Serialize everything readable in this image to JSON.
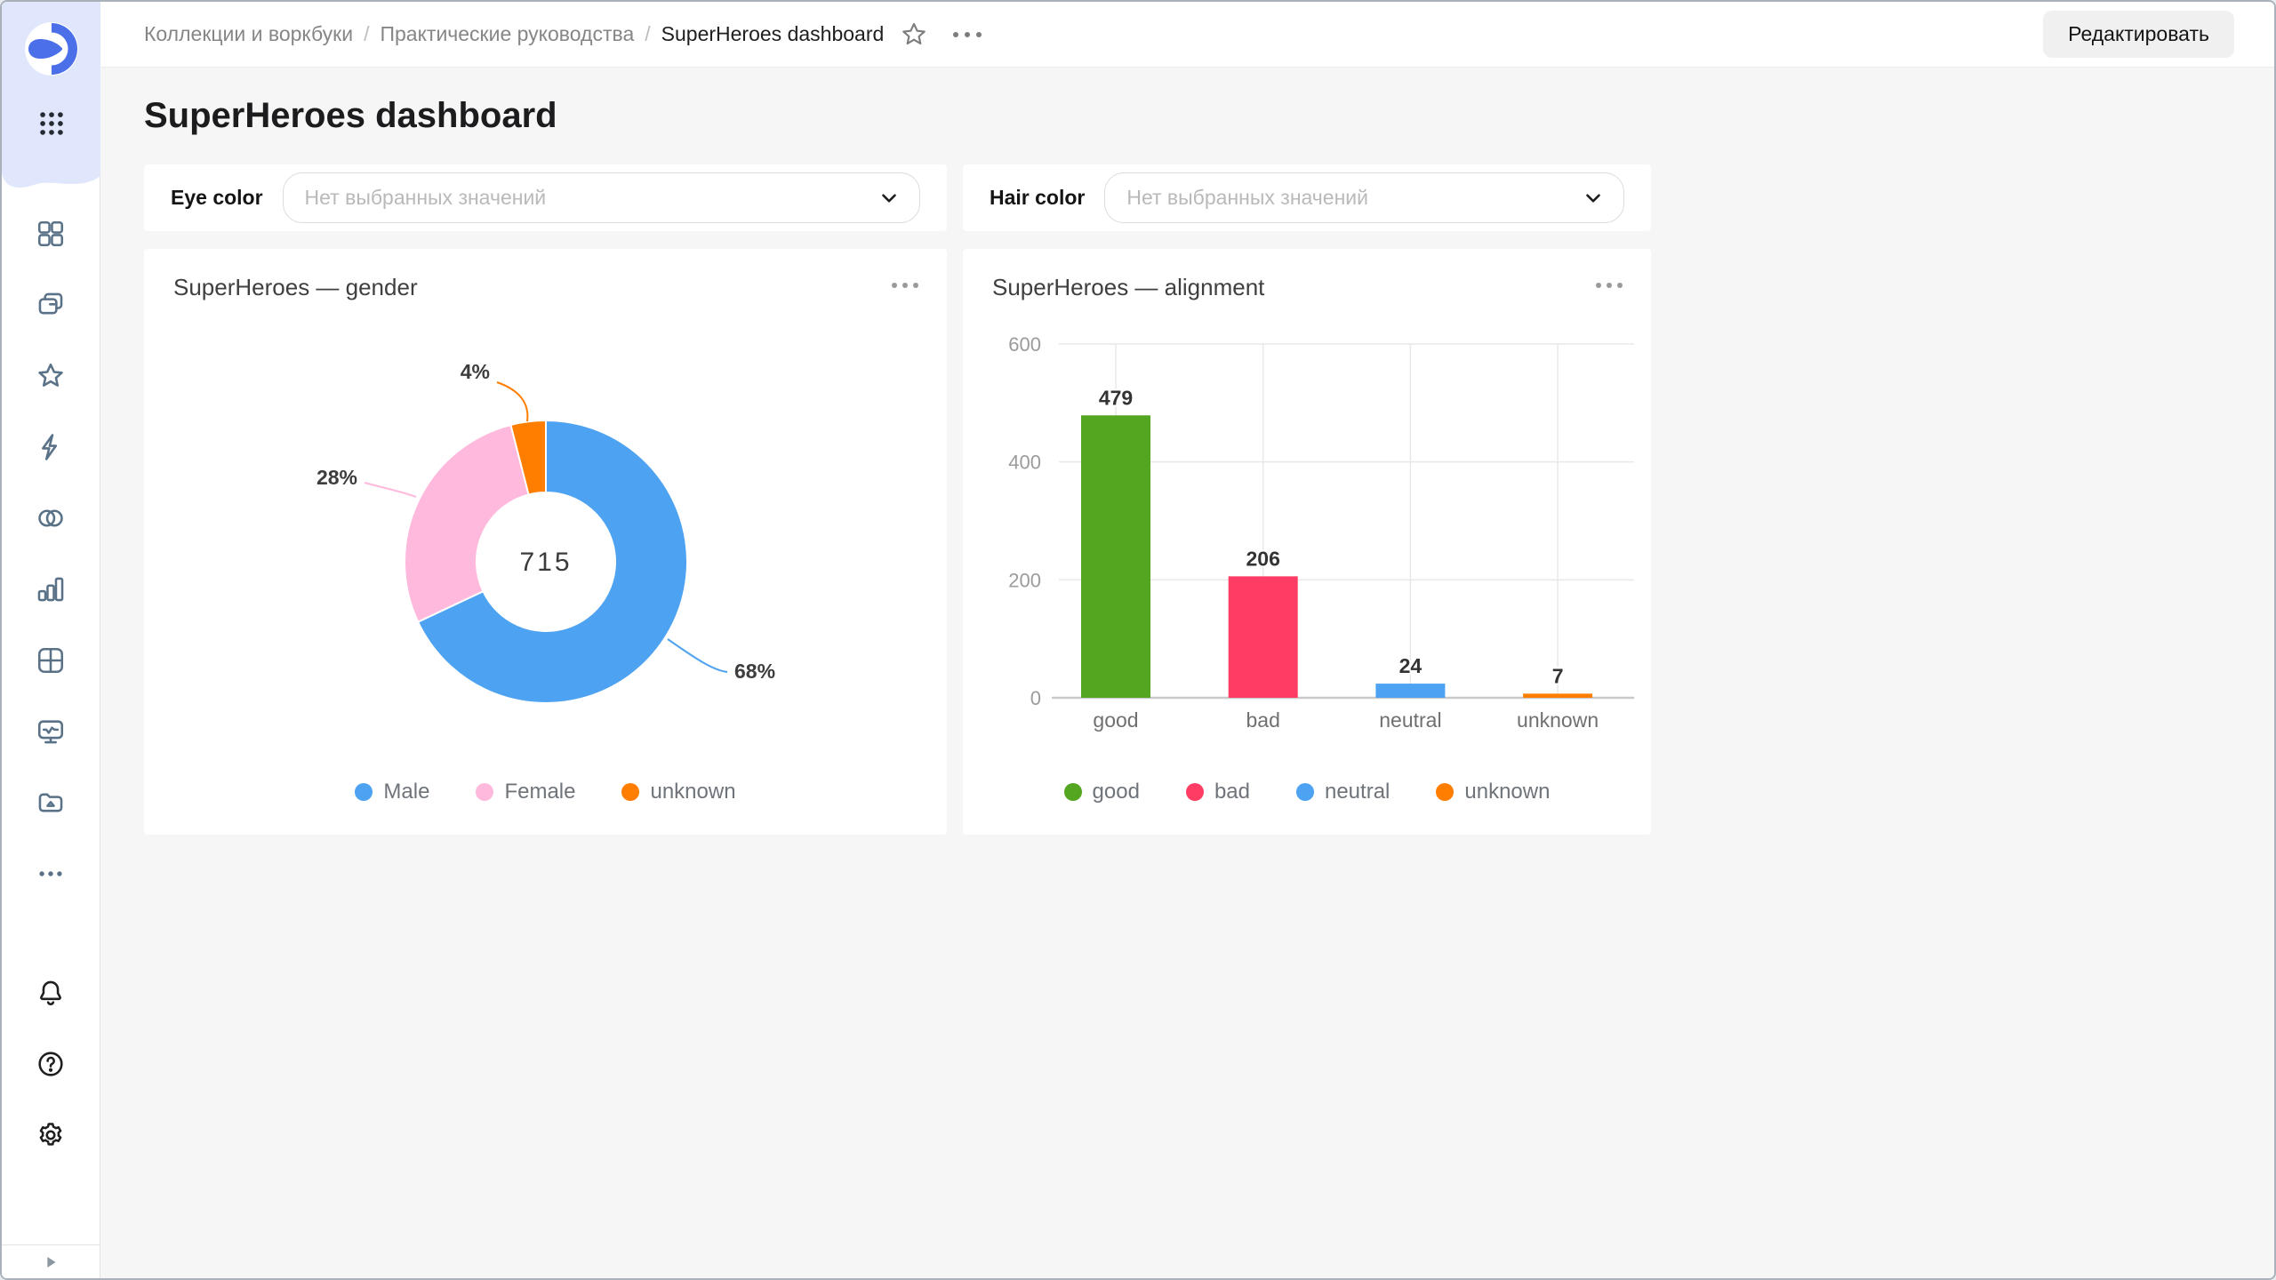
{
  "breadcrumbs": {
    "items": [
      "Коллекции и воркбуки",
      "Практические руководства",
      "SuperHeroes dashboard"
    ],
    "separator": "/"
  },
  "header": {
    "edit_button": "Редактировать"
  },
  "page": {
    "title": "SuperHeroes dashboard"
  },
  "filters": [
    {
      "label": "Eye color",
      "placeholder": "Нет выбранных значений"
    },
    {
      "label": "Hair color",
      "placeholder": "Нет выбранных значений"
    }
  ],
  "chart_data": [
    {
      "type": "pie",
      "subtype": "donut",
      "title": "SuperHeroes — gender",
      "center_total": "715",
      "slices": [
        {
          "name": "Male",
          "percent": 68,
          "color": "#4DA2F1"
        },
        {
          "name": "Female",
          "percent": 28,
          "color": "#FFB9DD"
        },
        {
          "name": "unknown",
          "percent": 4,
          "color": "#FF7E00"
        }
      ],
      "legend_position": "bottom"
    },
    {
      "type": "bar",
      "title": "SuperHeroes — alignment",
      "categories": [
        "good",
        "bad",
        "neutral",
        "unknown"
      ],
      "values": [
        479,
        206,
        24,
        7
      ],
      "colors": [
        "#54A520",
        "#FF3D64",
        "#4DA2F1",
        "#FF7E00"
      ],
      "ylim": [
        0,
        600
      ],
      "yticks": [
        0,
        200,
        400,
        600
      ],
      "grid": true,
      "legend_position": "bottom"
    }
  ],
  "sidebar": {
    "icons": [
      "datalens-logo",
      "apps-grid",
      "collections",
      "workbooks",
      "favorites",
      "functions",
      "connections",
      "charts",
      "dashboards",
      "monitoring",
      "storage",
      "more",
      "notifications",
      "help",
      "settings",
      "expand"
    ]
  },
  "colors": {
    "accent_blue": "#4DA2F1",
    "pink": "#FFB9DD",
    "orange": "#FF7E00",
    "green": "#54A520",
    "red": "#FF3D64",
    "page_bg": "#f6f6f6",
    "card_bg": "#ffffff"
  }
}
